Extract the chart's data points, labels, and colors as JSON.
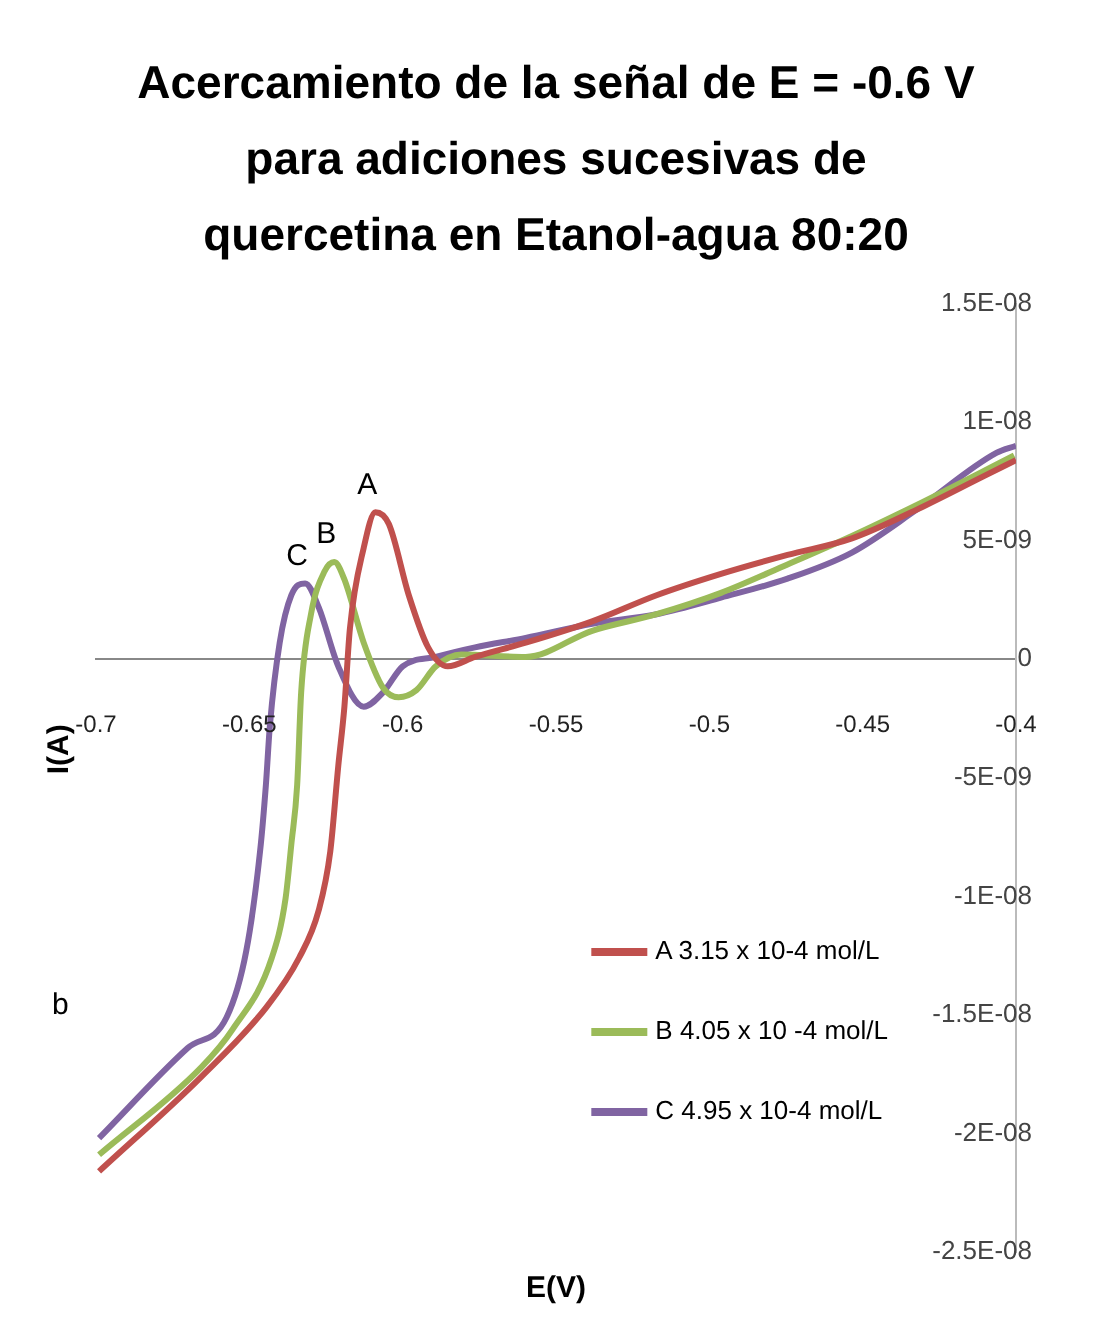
{
  "chart_data": {
    "type": "line",
    "title": "Acercamiento de la señal de E = -0.6 V para adiciones sucesivas de quercetina en Etanol-agua 80:20",
    "xlabel": "E(V)",
    "ylabel": "I(A)",
    "xlim": [
      -0.7,
      -0.4
    ],
    "xticks": [
      -0.7,
      -0.65,
      -0.6,
      -0.55,
      -0.5,
      -0.45,
      -0.4
    ],
    "ylim": [
      -2.5e-08,
      1.5e-08
    ],
    "yticks": [
      {
        "value": -2.5e-08,
        "label": "-2.5E-08"
      },
      {
        "value": -2e-08,
        "label": "-2E-08"
      },
      {
        "value": -1.5e-08,
        "label": "-1.5E-08"
      },
      {
        "value": -1e-08,
        "label": "-1E-08"
      },
      {
        "value": -5e-09,
        "label": "-5E-09"
      },
      0,
      {
        "value": 5e-09,
        "label": "5E-09"
      },
      {
        "value": 1e-08,
        "label": "1E-08"
      },
      {
        "value": 1.5e-08,
        "label": "1.5E-08"
      }
    ],
    "grid": false,
    "legend": "bottom right",
    "marker": "none",
    "line_style": "solid",
    "annotations": [
      {
        "text": "A",
        "x": -0.6089,
        "y": 6.2e-09
      },
      {
        "text": "B",
        "x": -0.6223,
        "y": 4.1e-09
      },
      {
        "text": "C",
        "x": -0.6318,
        "y": 3.2e-09
      },
      "b"
    ],
    "series": [
      {
        "name": "A 3.15 x 10-4 mol/L",
        "color": "#c0504d",
        "x": [
          -0.699,
          -0.6656,
          -0.6446,
          -0.6338,
          -0.6274,
          -0.6236,
          -0.621,
          -0.619,
          -0.6172,
          -0.6127,
          -0.6089,
          -0.6045,
          -0.598,
          -0.5917,
          -0.5853,
          -0.5764,
          -0.5599,
          -0.5382,
          -0.5172,
          -0.4962,
          -0.4745,
          -0.4535,
          -0.4325,
          -0.4108,
          -0.4
        ],
        "values": [
          -2.16e-08,
          -1.76e-08,
          -1.47e-08,
          -1.26e-08,
          -1.06e-08,
          -8.1e-09,
          -4.5e-09,
          -2e-09,
          1.3e-09,
          4.7e-09,
          6.2e-09,
          5.7e-09,
          2.7e-09,
          5e-10,
          -3e-10,
          1e-10,
          7e-10,
          1.6e-09,
          2.7e-09,
          3.6e-09,
          4.4e-09,
          5.1e-09,
          6.3e-09,
          7.7e-09,
          8.4e-09
        ]
      },
      {
        "name": "B 4.05 x 10 -4 mol/L",
        "color": "#9bbb59",
        "x": [
          -0.699,
          -0.6656,
          -0.6554,
          -0.6427,
          -0.6382,
          -0.6363,
          -0.6344,
          -0.6331,
          -0.6299,
          -0.6255,
          -0.6223,
          -0.6191,
          -0.6127,
          -0.6064,
          -0.6013,
          -0.5955,
          -0.5892,
          -0.5809,
          -0.5599,
          -0.5382,
          -0.5172,
          -0.4962,
          -0.4745,
          -0.4535,
          -0.4325,
          -0.4006
        ],
        "values": [
          -2.09e-08,
          -1.72e-08,
          -1.56e-08,
          -1.26e-08,
          -1.01e-08,
          -7.8e-09,
          -5.3e-09,
          -1.4e-09,
          1.9e-09,
          3.7e-09,
          4.1e-09,
          3.4e-09,
          7e-10,
          -1.2e-09,
          -1.6e-09,
          -1.3e-09,
          -3e-10,
          2e-10,
          1e-10,
          1.2e-09,
          1.9e-09,
          2.8e-09,
          4e-09,
          5.2e-09,
          6.5e-09,
          8.6e-09
        ]
      },
      {
        "name": "C 4.95 x 10-4 mol/L",
        "color": "#8064a2",
        "x": [
          -0.699,
          -0.6701,
          -0.6574,
          -0.651,
          -0.6465,
          -0.6446,
          -0.6433,
          -0.6401,
          -0.6363,
          -0.6318,
          -0.6274,
          -0.621,
          -0.6127,
          -0.6064,
          -0.6,
          -0.5892,
          -0.5764,
          -0.5599,
          -0.5382,
          -0.5172,
          -0.4962,
          -0.4745,
          -0.4535,
          -0.4325,
          -0.4064,
          -0.4
        ],
        "values": [
          -2.02e-08,
          -1.64e-08,
          -1.51e-08,
          -1.23e-08,
          -8.1e-09,
          -5.3e-09,
          -2.8e-09,
          7e-10,
          2.7e-09,
          3.2e-09,
          2.2e-09,
          -3e-10,
          -2e-09,
          -1.4e-09,
          -3e-10,
          1e-10,
          5e-10,
          9e-10,
          1.5e-09,
          1.9e-09,
          2.6e-09,
          3.4e-09,
          4.5e-09,
          6.3e-09,
          8.7e-09,
          9e-09
        ]
      }
    ]
  }
}
